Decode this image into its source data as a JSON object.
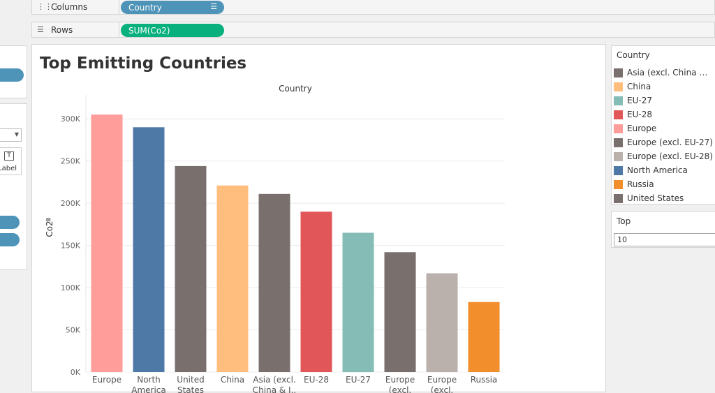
{
  "shelves": {
    "columns": {
      "label": "Columns",
      "pill": "Country",
      "pill_color": "#4e94b8"
    },
    "rows": {
      "label": "Rows",
      "pill": "SUM(Co2)",
      "pill_color": "#07b07c"
    }
  },
  "left_panel": {
    "card_label": "Label"
  },
  "sheet": {
    "title": "Top Emitting Countries"
  },
  "chart_data": {
    "type": "bar",
    "xlabel": "Country",
    "ylabel": "Co2",
    "ylim": [
      0,
      320000
    ],
    "yticks": [
      0,
      50000,
      100000,
      150000,
      200000,
      250000,
      300000
    ],
    "ytick_labels": [
      "0K",
      "50K",
      "100K",
      "150K",
      "200K",
      "250K",
      "300K"
    ],
    "grid": true,
    "categories": [
      "Europe",
      "North America",
      "United States",
      "China",
      "Asia (excl. China & I..",
      "EU-28",
      "EU-27",
      "Europe (excl.",
      "Europe (excl.",
      "Russia"
    ],
    "values": [
      305000,
      290000,
      244000,
      221000,
      211000,
      190000,
      165000,
      142000,
      117000,
      83000
    ],
    "colors": [
      "#ff9d9a",
      "#4e79a7",
      "#79706e",
      "#ffbe7d",
      "#79706e",
      "#e15759",
      "#86bcb6",
      "#79706e",
      "#bab0ac",
      "#f28e2b"
    ]
  },
  "legend": {
    "title": "Country",
    "items": [
      {
        "label": "Asia (excl. China & In..",
        "color": "#79706e"
      },
      {
        "label": "China",
        "color": "#ffbe7d"
      },
      {
        "label": "EU-27",
        "color": "#86bcb6"
      },
      {
        "label": "EU-28",
        "color": "#e15759"
      },
      {
        "label": "Europe",
        "color": "#ff9d9a"
      },
      {
        "label": "Europe (excl. EU-27)",
        "color": "#79706e"
      },
      {
        "label": "Europe (excl. EU-28)",
        "color": "#bab0ac"
      },
      {
        "label": "North America",
        "color": "#4e79a7"
      },
      {
        "label": "Russia",
        "color": "#f28e2b"
      },
      {
        "label": "United States",
        "color": "#79706e"
      }
    ]
  },
  "top_filter": {
    "title": "Top",
    "value": "10"
  }
}
